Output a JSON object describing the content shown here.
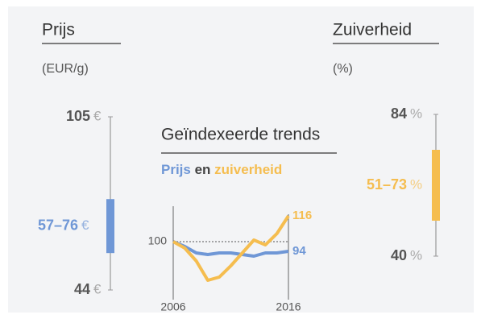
{
  "chart_data": [
    {
      "type": "range",
      "title": "Prijs",
      "subtitle": "(EUR/g)",
      "unit": "€",
      "color": "#6f97d6",
      "ylim": [
        44,
        105
      ],
      "yticks": [
        44,
        105
      ],
      "values": [
        57,
        76
      ],
      "range_label": "57–76"
    },
    {
      "type": "range",
      "title": "Zuiverheid",
      "subtitle": "(%)",
      "unit": "%",
      "color": "#f5bd4f",
      "ylim": [
        40,
        84
      ],
      "yticks": [
        40,
        84
      ],
      "values": [
        51,
        73
      ],
      "range_label": "51–73"
    },
    {
      "type": "line",
      "title": "Geïndexeerde trends",
      "legend_joiner": "en",
      "x": [
        2006,
        2007,
        2008,
        2009,
        2010,
        2011,
        2012,
        2013,
        2014,
        2015,
        2016
      ],
      "xlim": [
        2006,
        2016
      ],
      "xticks": [
        2006,
        2016
      ],
      "ylim": [
        66,
        122
      ],
      "yticks": [
        100
      ],
      "series": [
        {
          "name": "Prijs",
          "color": "#6f97d6",
          "values": [
            100,
            97,
            93,
            92,
            93,
            93,
            92,
            91,
            93,
            93,
            94
          ]
        },
        {
          "name": "zuiverheid",
          "color": "#f5bd4f",
          "values": [
            100,
            96,
            88,
            76,
            78,
            85,
            93,
            101,
            98,
            105,
            116
          ]
        }
      ]
    }
  ]
}
